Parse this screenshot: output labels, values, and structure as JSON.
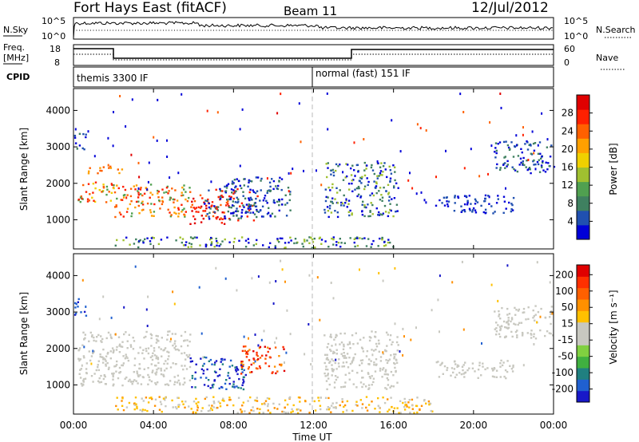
{
  "header": {
    "station": "Fort Hays East (fitACF)",
    "beam": "Beam 11",
    "date": "12/Jul/2012"
  },
  "noise_panel": {
    "left_label": "N.Sky",
    "right_label": "N.Search",
    "left_ticks": [
      "10^5",
      "10^0"
    ],
    "right_ticks": [
      "10^5",
      "10^0"
    ]
  },
  "freq_panel": {
    "left_label_1": "Freq.",
    "left_label_2": "[MHz]",
    "right_label": "Nave",
    "left_ticks": [
      "18",
      "8"
    ],
    "right_ticks": [
      "60",
      "0"
    ]
  },
  "cpid_panel": {
    "label": "CPID",
    "modes": [
      {
        "start": "00:00",
        "name": "themis 3300 IF"
      },
      {
        "start": "12:00",
        "name": "normal (fast) 151 IF"
      }
    ]
  },
  "chart_data": [
    {
      "type": "heatmap",
      "name": "power",
      "ylabel": "Slant Range [km]",
      "ylim": [
        200,
        4600
      ],
      "yticks": [
        1000,
        2000,
        3000,
        4000
      ],
      "xlim_hours": [
        0,
        24
      ],
      "colorbar": {
        "label": "Power [dB]",
        "ticks": [
          "4",
          "8",
          "12",
          "16",
          "20",
          "24",
          "28"
        ],
        "colors": [
          "#0000d8",
          "#2050b0",
          "#3f8060",
          "#50a050",
          "#a0c030",
          "#f0d000",
          "#ffa000",
          "#ff6000",
          "#ff2000",
          "#e00000"
        ]
      }
    },
    {
      "type": "heatmap",
      "name": "velocity",
      "ylabel": "Slant Range [km]",
      "ylim": [
        200,
        4600
      ],
      "yticks": [
        1000,
        2000,
        3000,
        4000
      ],
      "xlim_hours": [
        0,
        24
      ],
      "colorbar": {
        "label": "Velocity [m s⁻¹]",
        "ticks": [
          "200",
          "100",
          "50",
          "15",
          "-15",
          "-50",
          "-100",
          "-200"
        ],
        "colors": [
          "#1818c8",
          "#2060d0",
          "#208080",
          "#40b040",
          "#80d040",
          "#c8c8c0",
          "#c8c8c0",
          "#ffc000",
          "#ff9000",
          "#ff6000",
          "#ff3000",
          "#e00000"
        ]
      }
    }
  ],
  "x_axis": {
    "ticks": [
      "00:00",
      "04:00",
      "08:00",
      "12:00",
      "16:00",
      "20:00",
      "00:00"
    ],
    "label": "Time UT"
  }
}
